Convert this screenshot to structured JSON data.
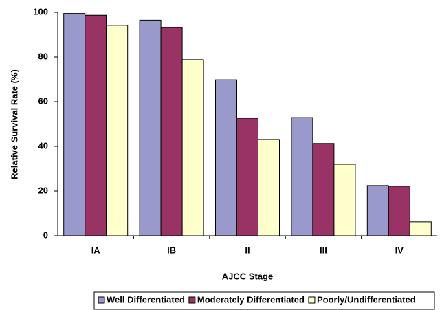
{
  "chart_data": {
    "type": "bar",
    "x_label": "AJCC Stage",
    "y_label": "Relative Survival Rate (%)",
    "categories": [
      "IA",
      "IB",
      "II",
      "III",
      "IV"
    ],
    "series": [
      {
        "name": "Well Differentiated",
        "color": "#9999cc",
        "values": [
          99.5,
          96.5,
          69.8,
          52.9,
          22.5
        ]
      },
      {
        "name": "Moderately Differentiated",
        "color": "#993366",
        "values": [
          98.7,
          93.2,
          52.6,
          41.3,
          22.2
        ]
      },
      {
        "name": "Poorly/Undifferentiated",
        "color": "#ffffcc",
        "values": [
          94.2,
          78.8,
          43.1,
          32,
          6.2
        ]
      }
    ],
    "ylim": [
      0,
      100
    ],
    "yticks": [
      0,
      20,
      40,
      60,
      80,
      100
    ],
    "grid": false,
    "legend": "bottom"
  }
}
